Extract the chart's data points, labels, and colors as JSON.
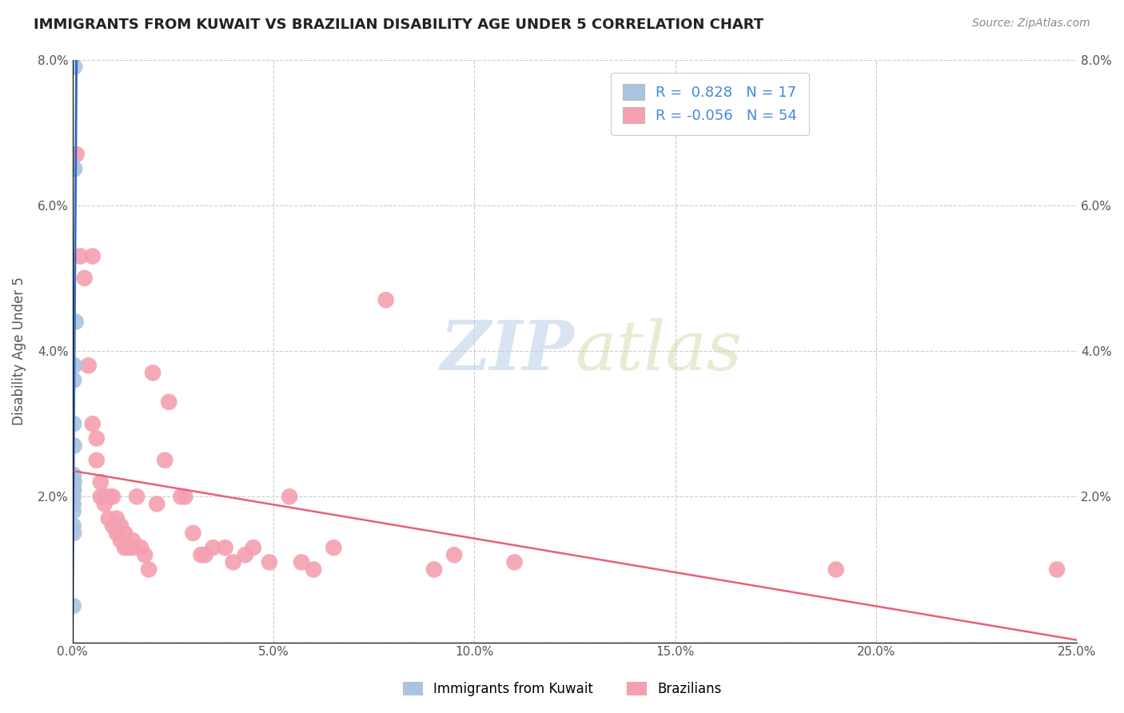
{
  "title": "IMMIGRANTS FROM KUWAIT VS BRAZILIAN DISABILITY AGE UNDER 5 CORRELATION CHART",
  "source": "Source: ZipAtlas.com",
  "ylabel": "Disability Age Under 5",
  "xlim": [
    0,
    0.25
  ],
  "ylim": [
    0,
    0.08
  ],
  "xticks": [
    0.0,
    0.05,
    0.1,
    0.15,
    0.2,
    0.25
  ],
  "xticklabels": [
    "0.0%",
    "5.0%",
    "10.0%",
    "15.0%",
    "20.0%",
    "25.0%"
  ],
  "yticks": [
    0.0,
    0.02,
    0.04,
    0.06,
    0.08
  ],
  "yticklabels": [
    "",
    "2.0%",
    "4.0%",
    "6.0%",
    "8.0%"
  ],
  "legend_r_blue": "0.828",
  "legend_n_blue": "17",
  "legend_r_pink": "-0.056",
  "legend_n_pink": "54",
  "blue_color": "#a8c4e0",
  "pink_color": "#f4a0b0",
  "line_blue": "#3b6bbf",
  "line_pink": "#e8607a",
  "kuwait_points": [
    [
      0.0005,
      0.079
    ],
    [
      0.0005,
      0.065
    ],
    [
      0.0008,
      0.044
    ],
    [
      0.0005,
      0.038
    ],
    [
      0.0003,
      0.036
    ],
    [
      0.0003,
      0.03
    ],
    [
      0.0004,
      0.027
    ],
    [
      0.0003,
      0.023
    ],
    [
      0.0004,
      0.022
    ],
    [
      0.0002,
      0.021
    ],
    [
      0.0003,
      0.021
    ],
    [
      0.0002,
      0.02
    ],
    [
      0.0002,
      0.019
    ],
    [
      0.0002,
      0.018
    ],
    [
      0.0002,
      0.016
    ],
    [
      0.0003,
      0.015
    ],
    [
      0.0002,
      0.005
    ]
  ],
  "brazil_points": [
    [
      0.001,
      0.067
    ],
    [
      0.002,
      0.053
    ],
    [
      0.003,
      0.05
    ],
    [
      0.004,
      0.038
    ],
    [
      0.005,
      0.053
    ],
    [
      0.005,
      0.03
    ],
    [
      0.006,
      0.028
    ],
    [
      0.006,
      0.025
    ],
    [
      0.007,
      0.022
    ],
    [
      0.007,
      0.02
    ],
    [
      0.008,
      0.02
    ],
    [
      0.008,
      0.019
    ],
    [
      0.009,
      0.02
    ],
    [
      0.009,
      0.017
    ],
    [
      0.01,
      0.016
    ],
    [
      0.01,
      0.02
    ],
    [
      0.011,
      0.015
    ],
    [
      0.011,
      0.017
    ],
    [
      0.012,
      0.016
    ],
    [
      0.012,
      0.014
    ],
    [
      0.013,
      0.015
    ],
    [
      0.013,
      0.013
    ],
    [
      0.014,
      0.013
    ],
    [
      0.015,
      0.014
    ],
    [
      0.015,
      0.013
    ],
    [
      0.016,
      0.02
    ],
    [
      0.017,
      0.013
    ],
    [
      0.018,
      0.012
    ],
    [
      0.019,
      0.01
    ],
    [
      0.02,
      0.037
    ],
    [
      0.021,
      0.019
    ],
    [
      0.023,
      0.025
    ],
    [
      0.024,
      0.033
    ],
    [
      0.027,
      0.02
    ],
    [
      0.028,
      0.02
    ],
    [
      0.03,
      0.015
    ],
    [
      0.032,
      0.012
    ],
    [
      0.033,
      0.012
    ],
    [
      0.035,
      0.013
    ],
    [
      0.038,
      0.013
    ],
    [
      0.04,
      0.011
    ],
    [
      0.043,
      0.012
    ],
    [
      0.045,
      0.013
    ],
    [
      0.049,
      0.011
    ],
    [
      0.054,
      0.02
    ],
    [
      0.057,
      0.011
    ],
    [
      0.06,
      0.01
    ],
    [
      0.065,
      0.013
    ],
    [
      0.078,
      0.047
    ],
    [
      0.09,
      0.01
    ],
    [
      0.095,
      0.012
    ],
    [
      0.11,
      0.011
    ],
    [
      0.19,
      0.01
    ],
    [
      0.245,
      0.01
    ]
  ]
}
